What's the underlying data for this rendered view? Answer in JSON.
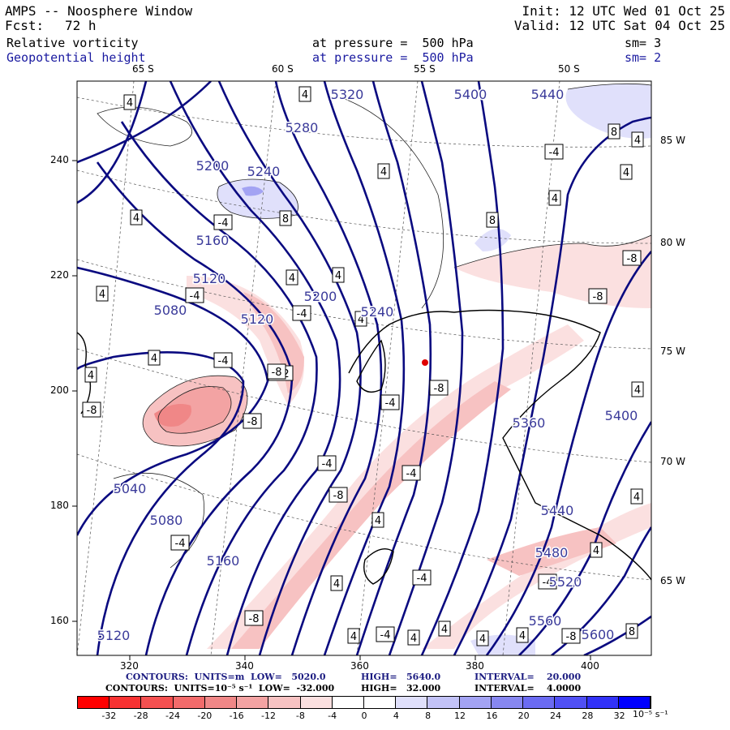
{
  "header": {
    "title": "AMPS -- Noosphere Window",
    "init": "Init: 12 UTC Wed 01 Oct 25",
    "fcst_label": "Fcst:",
    "fcst_value": "72 h",
    "valid": "Valid: 12 UTC Sat 04 Oct 25"
  },
  "fields": [
    {
      "name": "Relative vorticity",
      "level": "at pressure =  500 hPa",
      "smooth": "sm= 3",
      "color": "#000000"
    },
    {
      "name": "Geopotential height",
      "level": "at pressure =  500 hPa",
      "smooth": "sm= 2",
      "color": "#1a1aa0"
    }
  ],
  "lat_top_labels": [
    "65 S",
    "60 S",
    "55 S",
    "50 S"
  ],
  "lon_right_labels": [
    "85 W",
    "80 W",
    "75 W",
    "70 W",
    "65 W"
  ],
  "x_ticks": [
    "320",
    "340",
    "360",
    "380",
    "400"
  ],
  "y_ticks": [
    "240",
    "220",
    "200",
    "180",
    "160"
  ],
  "height_labels": [
    "5320",
    "5400",
    "5440",
    "5280",
    "5200",
    "5240",
    "5160",
    "5120",
    "5080",
    "5200",
    "5120",
    "5240",
    "5040",
    "5080",
    "5160",
    "5120",
    "5360",
    "5400",
    "5440",
    "5480",
    "5520",
    "5560",
    "5600"
  ],
  "vort_labels": [
    "4",
    "4",
    "8",
    "-4",
    "4",
    "4",
    "4",
    "4",
    "8",
    "-4",
    "8",
    "-8",
    "4",
    "4",
    "4",
    "4",
    "-4",
    "4",
    "-4",
    "-8",
    "4",
    "-4",
    "-12",
    "-8",
    "-8",
    "-4",
    "-4",
    "-8",
    "4",
    "-4",
    "-8",
    "-4",
    "-4",
    "4",
    "-8",
    "4",
    "-4",
    "4",
    "4",
    "4",
    "4",
    "-8",
    "8",
    "4",
    "4",
    "-4",
    "-8",
    "4",
    "4"
  ],
  "footer": {
    "line1_label": "CONTOURS:  UNITS=m  LOW=   5020.0",
    "line1_high": "HIGH=   5640.0",
    "line1_int": "INTERVAL=    20.000",
    "line2_label": "CONTOURS:  UNITS=10⁻⁵ s⁻¹  LOW=  -32.000",
    "line2_high": "HIGH=   32.000",
    "line2_int": "INTERVAL=    4.0000"
  },
  "colorbar": {
    "ticks": [
      "-32",
      "-28",
      "-24",
      "-20",
      "-16",
      "-12",
      "-8",
      "-4",
      "0",
      "4",
      "8",
      "12",
      "16",
      "20",
      "24",
      "28",
      "32"
    ],
    "unit": "10⁻⁵ s⁻¹",
    "colors": [
      "#ff0000",
      "#f83232",
      "#f55050",
      "#f26b6b",
      "#f08787",
      "#f3a3a3",
      "#f7c2c2",
      "#fbe0e0",
      "#ffffff",
      "#ffffff",
      "#e0e0fb",
      "#c2c2f7",
      "#a3a3f3",
      "#8787f0",
      "#6b6bf2",
      "#5050f5",
      "#3232f8",
      "#0000ff"
    ]
  }
}
